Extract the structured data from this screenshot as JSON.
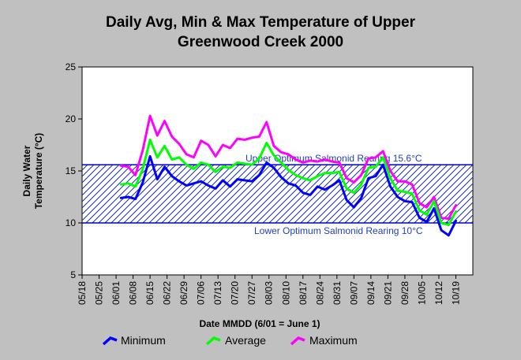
{
  "chart_data": {
    "type": "line",
    "title_line1": "Daily Avg, Min & Max Temperature of Upper",
    "title_line2": "Greenwood Creek 2000",
    "xlabel": "Date MMDD (6/01 = June 1)",
    "ylabel_line1": "Daily Water",
    "ylabel_line2": "Temperature (°C)",
    "ylim": [
      5,
      25
    ],
    "yticks": [
      5,
      10,
      15,
      20,
      25
    ],
    "xlim": [
      "05/18",
      "10/26"
    ],
    "xticks": [
      "05/18",
      "05/25",
      "06/01",
      "06/08",
      "06/15",
      "06/22",
      "06/29",
      "07/06",
      "07/13",
      "07/20",
      "07/27",
      "08/03",
      "08/10",
      "08/17",
      "08/24",
      "08/31",
      "09/07",
      "09/14",
      "09/21",
      "09/28",
      "10/05",
      "10/12",
      "10/19"
    ],
    "grid": false,
    "legend_position": "bottom",
    "optimum_band": {
      "upper": 15.6,
      "lower": 10,
      "upper_label": "Upper Optimum Salmonid Rearing 15.6°C",
      "lower_label": "Lower Optimum Salmonid Rearing 10°C"
    },
    "x": [
      "06/03",
      "06/06",
      "06/09",
      "06/12",
      "06/15",
      "06/18",
      "06/21",
      "06/24",
      "06/27",
      "06/30",
      "07/03",
      "07/06",
      "07/09",
      "07/12",
      "07/15",
      "07/18",
      "07/21",
      "07/24",
      "07/27",
      "07/30",
      "08/02",
      "08/05",
      "08/08",
      "08/11",
      "08/14",
      "08/17",
      "08/20",
      "08/23",
      "08/26",
      "08/29",
      "09/01",
      "09/04",
      "09/07",
      "09/10",
      "09/13",
      "09/16",
      "09/19",
      "09/22",
      "09/25",
      "09/28",
      "10/01",
      "10/04",
      "10/07",
      "10/10",
      "10/13",
      "10/16",
      "10/19"
    ],
    "series": [
      {
        "name": "Minimum",
        "color": "#0000ff",
        "values": [
          12.4,
          12.5,
          12.3,
          13.9,
          16.4,
          14.2,
          15.4,
          14.5,
          14.0,
          13.6,
          13.8,
          14.0,
          13.6,
          13.3,
          14.1,
          13.5,
          14.2,
          14.1,
          14.0,
          14.6,
          15.8,
          15.3,
          14.4,
          13.8,
          13.6,
          12.9,
          12.7,
          13.5,
          13.2,
          13.6,
          14.1,
          12.2,
          11.5,
          12.4,
          14.3,
          14.5,
          15.6,
          13.5,
          12.5,
          12.1,
          12.0,
          10.5,
          10.1,
          11.4,
          9.3,
          8.8,
          10.2
        ]
      },
      {
        "name": "Average",
        "color": "#00ff00",
        "values": [
          13.7,
          13.8,
          13.5,
          15.2,
          18.0,
          16.3,
          17.4,
          16.1,
          16.3,
          15.6,
          15.2,
          15.8,
          15.6,
          14.9,
          15.4,
          15.3,
          15.8,
          15.7,
          15.6,
          16.2,
          17.7,
          16.5,
          15.8,
          15.1,
          14.6,
          14.3,
          14.1,
          14.5,
          14.8,
          14.8,
          14.9,
          13.3,
          12.9,
          13.7,
          15.3,
          15.4,
          16.3,
          14.3,
          13.1,
          13.0,
          12.8,
          11.2,
          10.8,
          12.1,
          10.0,
          9.8,
          11.1
        ]
      },
      {
        "name": "Maximum",
        "color": "#ff00ff",
        "values": [
          15.5,
          15.4,
          14.6,
          17.0,
          20.3,
          18.4,
          19.8,
          18.3,
          17.6,
          16.6,
          16.3,
          17.9,
          17.5,
          16.4,
          17.5,
          17.2,
          18.1,
          18.0,
          18.2,
          18.3,
          19.7,
          17.4,
          16.8,
          16.6,
          16.1,
          15.8,
          16.0,
          15.9,
          16.1,
          15.9,
          15.8,
          14.3,
          13.9,
          14.6,
          16.2,
          16.3,
          16.9,
          15.0,
          14.0,
          14.0,
          13.7,
          11.9,
          11.5,
          12.5,
          10.5,
          10.4,
          11.7
        ]
      }
    ]
  }
}
